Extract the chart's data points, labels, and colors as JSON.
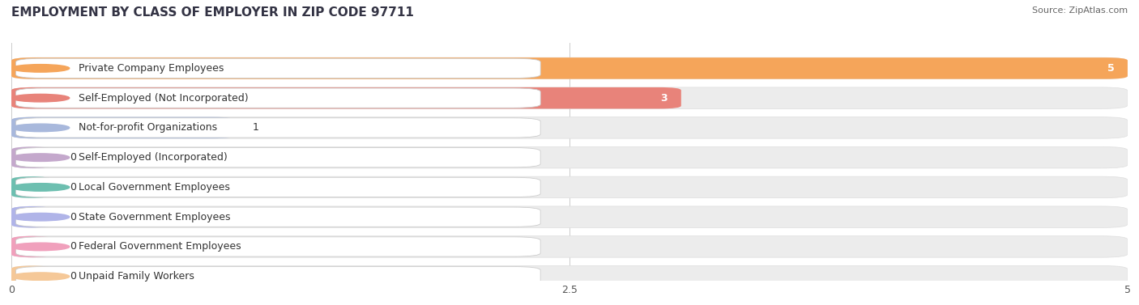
{
  "title": "EMPLOYMENT BY CLASS OF EMPLOYER IN ZIP CODE 97711",
  "source": "Source: ZipAtlas.com",
  "categories": [
    "Private Company Employees",
    "Self-Employed (Not Incorporated)",
    "Not-for-profit Organizations",
    "Self-Employed (Incorporated)",
    "Local Government Employees",
    "State Government Employees",
    "Federal Government Employees",
    "Unpaid Family Workers"
  ],
  "values": [
    5,
    3,
    1,
    0,
    0,
    0,
    0,
    0
  ],
  "bar_colors": [
    "#F5A55A",
    "#E8837A",
    "#A8B8DC",
    "#C4A8CC",
    "#6DBFB0",
    "#B0B4E8",
    "#F0A0BC",
    "#F5C898"
  ],
  "row_bg_color": "#EFEFEF",
  "row_alt_color": "#F8F8F8",
  "label_bg_color": "#FFFFFF",
  "xlim": [
    0,
    5
  ],
  "xticks": [
    0,
    2.5,
    5
  ],
  "title_fontsize": 11,
  "label_fontsize": 9,
  "value_fontsize": 9,
  "zero_stub": 0.18
}
